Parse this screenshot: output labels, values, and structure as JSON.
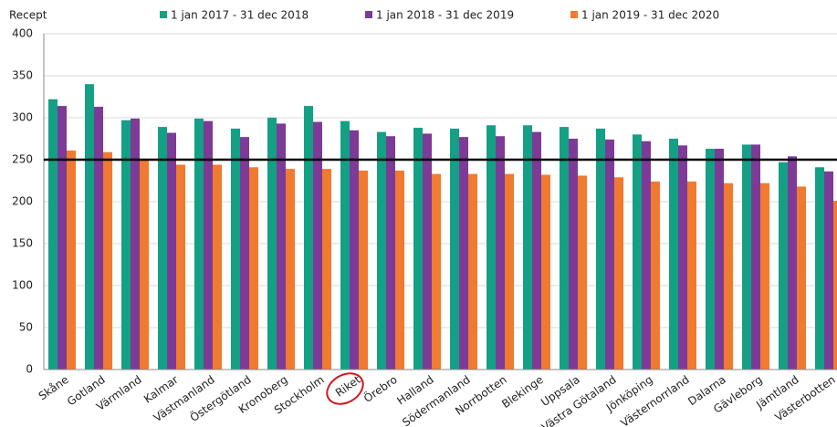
{
  "chart_data": {
    "type": "bar",
    "y_label": "Recept",
    "categories": [
      "Skåne",
      "Gotland",
      "Värmland",
      "Kalmar",
      "Västmanland",
      "Östergötland",
      "Kronoberg",
      "Stockholm",
      "Riket",
      "Örebro",
      "Halland",
      "Södermanland",
      "Norrbotten",
      "Blekinge",
      "Uppsala",
      "Västra Götaland",
      "Jönköping",
      "Västernorrland",
      "Dalarna",
      "Gävleborg",
      "Jämtland",
      "Västerbotten"
    ],
    "series": [
      {
        "name": "1 jan 2017 - 31 dec 2018",
        "color": "#14a085",
        "values": [
          322,
          340,
          297,
          289,
          299,
          287,
          300,
          314,
          296,
          283,
          288,
          287,
          291,
          291,
          289,
          287,
          280,
          275,
          263,
          268,
          247,
          241
        ]
      },
      {
        "name": "1 jan 2018 - 31 dec 2019",
        "color": "#7d3a96",
        "values": [
          314,
          313,
          299,
          282,
          296,
          277,
          293,
          295,
          285,
          278,
          281,
          277,
          278,
          283,
          275,
          274,
          272,
          267,
          263,
          268,
          254,
          236
        ]
      },
      {
        "name": "1 jan 2019 - 31 dec 2020",
        "color": "#f07a30",
        "values": [
          261,
          259,
          249,
          244,
          244,
          241,
          239,
          239,
          237,
          237,
          233,
          233,
          233,
          232,
          231,
          229,
          224,
          224,
          222,
          222,
          218,
          201
        ]
      }
    ],
    "reference_line": 250,
    "ylim": [
      0,
      400
    ],
    "yticks": [
      0,
      50,
      100,
      150,
      200,
      250,
      300,
      350,
      400
    ],
    "grid": true
  }
}
